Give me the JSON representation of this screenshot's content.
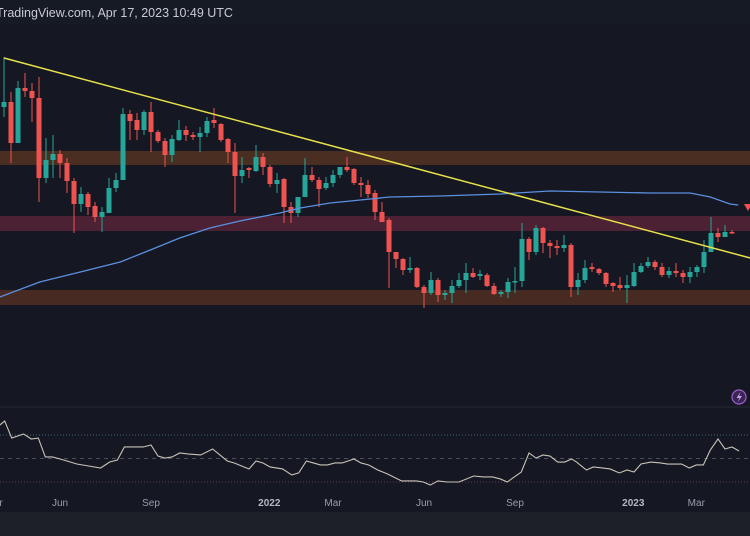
{
  "header": {
    "source_text": "TradingView.com, Apr 17, 2023 10:49 UTC"
  },
  "colors": {
    "background": "#151823",
    "up": "#26a69a",
    "down": "#ef5350",
    "trendline": "#e8e04a",
    "moving_average": "#5b8fe0",
    "rsi_line": "#c9c3b8",
    "zone_upper": "#4a2e22",
    "zone_middle": "#4b2133",
    "zone_lower": "#472b22"
  },
  "icons": {
    "alert": "lightning-bolt-icon",
    "price_marker": "triangle-down-icon"
  },
  "chart_data": [
    {
      "type": "candlestick",
      "title": "",
      "xlabel": "",
      "ylabel": "",
      "interval": "weekly",
      "y_axis_printed": false,
      "ylim": [
        80,
        360
      ],
      "x_tick_labels": [
        {
          "label": "Apr",
          "week": -1.3,
          "year": false
        },
        {
          "label": "Jun",
          "week": 8,
          "year": false
        },
        {
          "label": "Sep",
          "week": 21,
          "year": false
        },
        {
          "label": "2022",
          "week": 37.9,
          "year": true
        },
        {
          "label": "Mar",
          "week": 47,
          "year": false
        },
        {
          "label": "Jun",
          "week": 60,
          "year": false
        },
        {
          "label": "Sep",
          "week": 73,
          "year": false
        },
        {
          "label": "2023",
          "week": 89.9,
          "year": true
        },
        {
          "label": "Mar",
          "week": 98.9,
          "year": false
        }
      ],
      "ohlc": [
        [
          293,
          343,
          283,
          298
        ],
        [
          298,
          308,
          237,
          257
        ],
        [
          257,
          319,
          257,
          312
        ],
        [
          312,
          327,
          303,
          309
        ],
        [
          309,
          317,
          278,
          302
        ],
        [
          302,
          323,
          198,
          222
        ],
        [
          222,
          262,
          217,
          240
        ],
        [
          240,
          265,
          222,
          246
        ],
        [
          246,
          250,
          222,
          237
        ],
        [
          237,
          242,
          207,
          219
        ],
        [
          219,
          222,
          167,
          196
        ],
        [
          196,
          213,
          188,
          206
        ],
        [
          206,
          208,
          185,
          193
        ],
        [
          194,
          198,
          178,
          183
        ],
        [
          183,
          193,
          168,
          188
        ],
        [
          187,
          222,
          187,
          212
        ],
        [
          212,
          227,
          208,
          220
        ],
        [
          220,
          292,
          220,
          286
        ],
        [
          286,
          290,
          260,
          279
        ],
        [
          280,
          287,
          260,
          270
        ],
        [
          270,
          290,
          265,
          288
        ],
        [
          288,
          298,
          248,
          268
        ],
        [
          268,
          270,
          257,
          259
        ],
        [
          259,
          262,
          233,
          245
        ],
        [
          245,
          265,
          238,
          261
        ],
        [
          260,
          280,
          259,
          270
        ],
        [
          270,
          274,
          259,
          265
        ],
        [
          265,
          268,
          260,
          263
        ],
        [
          263,
          273,
          248,
          267
        ],
        [
          267,
          283,
          263,
          279
        ],
        [
          280,
          292,
          272,
          277
        ],
        [
          276,
          277,
          258,
          260
        ],
        [
          261,
          262,
          237,
          248
        ],
        [
          248,
          257,
          187,
          224
        ],
        [
          224,
          243,
          217,
          230
        ],
        [
          232,
          233,
          222,
          230
        ],
        [
          229,
          255,
          228,
          243
        ],
        [
          243,
          247,
          225,
          233
        ],
        [
          233,
          235,
          213,
          216
        ],
        [
          216,
          227,
          207,
          220
        ],
        [
          221,
          222,
          177,
          193
        ],
        [
          193,
          198,
          177,
          187
        ],
        [
          187,
          203,
          183,
          203
        ],
        [
          203,
          242,
          203,
          225
        ],
        [
          225,
          233,
          218,
          220
        ],
        [
          220,
          223,
          193,
          211
        ],
        [
          212,
          223,
          210,
          217
        ],
        [
          217,
          230,
          213,
          225
        ],
        [
          225,
          233,
          222,
          233
        ],
        [
          233,
          243,
          228,
          230
        ],
        [
          231,
          232,
          215,
          217
        ],
        [
          217,
          223,
          203,
          215
        ],
        [
          215,
          220,
          202,
          206
        ],
        [
          207,
          210,
          180,
          188
        ],
        [
          188,
          198,
          178,
          178
        ],
        [
          180,
          182,
          112,
          148
        ],
        [
          148,
          148,
          132,
          141
        ],
        [
          141,
          142,
          125,
          130
        ],
        [
          130,
          143,
          127,
          132
        ],
        [
          132,
          133,
          112,
          113
        ],
        [
          113,
          115,
          92,
          107
        ],
        [
          107,
          128,
          105,
          120
        ],
        [
          120,
          122,
          98,
          105
        ],
        [
          105,
          110,
          100,
          107
        ],
        [
          107,
          120,
          97,
          114
        ],
        [
          114,
          127,
          112,
          120
        ],
        [
          120,
          137,
          107,
          127
        ],
        [
          127,
          132,
          122,
          123
        ],
        [
          124,
          130,
          120,
          126
        ],
        [
          125,
          127,
          113,
          114
        ],
        [
          114,
          117,
          105,
          106
        ],
        [
          106,
          110,
          103,
          108
        ],
        [
          108,
          122,
          102,
          118
        ],
        [
          118,
          133,
          107,
          119
        ],
        [
          119,
          177,
          113,
          161
        ],
        [
          161,
          163,
          140,
          148
        ],
        [
          148,
          175,
          145,
          172
        ],
        [
          172,
          173,
          147,
          157
        ],
        [
          157,
          160,
          142,
          154
        ],
        [
          154,
          160,
          145,
          152
        ],
        [
          152,
          165,
          148,
          155
        ],
        [
          155,
          157,
          103,
          113
        ],
        [
          113,
          127,
          105,
          120
        ],
        [
          120,
          140,
          117,
          132
        ],
        [
          133,
          137,
          128,
          131
        ],
        [
          131,
          132,
          125,
          127
        ],
        [
          127,
          128,
          113,
          116
        ],
        [
          117,
          118,
          108,
          114
        ],
        [
          115,
          123,
          110,
          112
        ],
        [
          112,
          125,
          97,
          115
        ],
        [
          114,
          137,
          113,
          128
        ],
        [
          128,
          137,
          127,
          134
        ],
        [
          134,
          143,
          132,
          138
        ],
        [
          138,
          140,
          130,
          133
        ],
        [
          133,
          137,
          123,
          125
        ],
        [
          125,
          133,
          122,
          129
        ],
        [
          129,
          137,
          123,
          127
        ],
        [
          127,
          130,
          117,
          123
        ],
        [
          123,
          133,
          117,
          128
        ],
        [
          128,
          135,
          123,
          133
        ],
        [
          133,
          160,
          127,
          148
        ],
        [
          148,
          183,
          148,
          167
        ],
        [
          167,
          172,
          158,
          163
        ],
        [
          163,
          175,
          163,
          168
        ],
        [
          168,
          170,
          166,
          167
        ]
      ],
      "moving_average": [
        [
          -0.6,
          103
        ],
        [
          5.1,
          118
        ],
        [
          10.9,
          128
        ],
        [
          16.6,
          138
        ],
        [
          20.9,
          150
        ],
        [
          25.1,
          162
        ],
        [
          29.4,
          172
        ],
        [
          33.7,
          179
        ],
        [
          39.4,
          187
        ],
        [
          42.3,
          192
        ],
        [
          46.6,
          197
        ],
        [
          50.9,
          200
        ],
        [
          55.1,
          203
        ],
        [
          62.3,
          204
        ],
        [
          70.9,
          206
        ],
        [
          78,
          209
        ],
        [
          85.1,
          208
        ],
        [
          92.3,
          207
        ],
        [
          98,
          207
        ],
        [
          100.9,
          203
        ],
        [
          103.7,
          196
        ],
        [
          104.9,
          195
        ]
      ],
      "trendline": [
        [
          0,
          342
        ],
        [
          106.6,
          142
        ]
      ],
      "zones": [
        {
          "from": 235,
          "to": 249,
          "color": "#4a2e22"
        },
        {
          "from": 169,
          "to": 184,
          "color": "#4b2133"
        },
        {
          "from": 95,
          "to": 110,
          "color": "#472b22"
        }
      ],
      "last_price_marker": 196
    },
    {
      "type": "line",
      "title": "",
      "xlabel": "",
      "ylabel": "",
      "indicator": "RSI",
      "ylim": [
        20,
        90
      ],
      "levels": [
        70,
        50,
        30
      ],
      "points": [
        [
          -0.6,
          78.5
        ],
        [
          0.1,
          81.9
        ],
        [
          1.1,
          67.4
        ],
        [
          2.8,
          70.9
        ],
        [
          3.9,
          66.6
        ],
        [
          4.9,
          67.4
        ],
        [
          5.9,
          51.3
        ],
        [
          6.9,
          51.3
        ],
        [
          8,
          49.6
        ],
        [
          9,
          47.9
        ],
        [
          10.4,
          45.3
        ],
        [
          12.1,
          43.6
        ],
        [
          13.8,
          41.9
        ],
        [
          15.1,
          47
        ],
        [
          16.2,
          48.7
        ],
        [
          17.2,
          59.8
        ],
        [
          18.6,
          59.8
        ],
        [
          19.9,
          59.8
        ],
        [
          21,
          61.5
        ],
        [
          22,
          52.1
        ],
        [
          23,
          50.4
        ],
        [
          24,
          51.3
        ],
        [
          25.1,
          54.7
        ],
        [
          26.4,
          53.8
        ],
        [
          28.1,
          53
        ],
        [
          29.8,
          58.1
        ],
        [
          31.9,
          47.9
        ],
        [
          32.9,
          46.2
        ],
        [
          35,
          41.1
        ],
        [
          36,
          47.9
        ],
        [
          37,
          46.2
        ],
        [
          38,
          42.8
        ],
        [
          39.8,
          41.1
        ],
        [
          41.1,
          36
        ],
        [
          42.1,
          37.7
        ],
        [
          43.2,
          47.9
        ],
        [
          44.2,
          46.2
        ],
        [
          45.2,
          44.5
        ],
        [
          46.2,
          44.5
        ],
        [
          47.3,
          46.2
        ],
        [
          48.3,
          46.2
        ],
        [
          50,
          49.6
        ],
        [
          51,
          46.2
        ],
        [
          52.1,
          44.5
        ],
        [
          53.4,
          40.2
        ],
        [
          54.8,
          36.8
        ],
        [
          56.8,
          30.9
        ],
        [
          58.9,
          30.9
        ],
        [
          59.9,
          30
        ],
        [
          60.9,
          27.4
        ],
        [
          62,
          30.9
        ],
        [
          63.3,
          30
        ],
        [
          65,
          30
        ],
        [
          67.1,
          35.1
        ],
        [
          68.5,
          34.3
        ],
        [
          69.8,
          34.3
        ],
        [
          70.9,
          32.6
        ],
        [
          71.9,
          30
        ],
        [
          72.9,
          34.3
        ],
        [
          73.9,
          38.5
        ],
        [
          75,
          54.7
        ],
        [
          76,
          50.4
        ],
        [
          77,
          53
        ],
        [
          78,
          52.1
        ],
        [
          79.1,
          47
        ],
        [
          80.1,
          47
        ],
        [
          81.1,
          49.6
        ],
        [
          81.8,
          47
        ],
        [
          83.2,
          40.2
        ],
        [
          84.2,
          42.8
        ],
        [
          85.6,
          41.9
        ],
        [
          86.6,
          41.1
        ],
        [
          87.9,
          37.7
        ],
        [
          89,
          40.2
        ],
        [
          90,
          38.5
        ],
        [
          91,
          45.3
        ],
        [
          92.4,
          47
        ],
        [
          93.8,
          46.2
        ],
        [
          94.8,
          45.3
        ],
        [
          96.8,
          45.3
        ],
        [
          97.9,
          41.9
        ],
        [
          98.9,
          44.5
        ],
        [
          99.9,
          44.5
        ],
        [
          100.9,
          57.2
        ],
        [
          102,
          66.6
        ],
        [
          103,
          58.1
        ],
        [
          104,
          59.8
        ],
        [
          105,
          56.4
        ]
      ]
    }
  ]
}
